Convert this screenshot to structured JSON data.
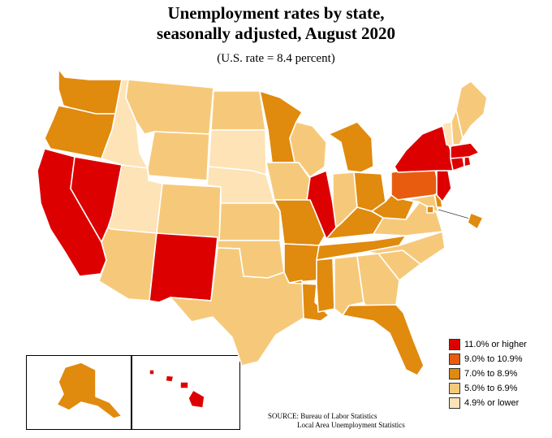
{
  "title_line1": "Unemployment rates by state,",
  "title_line2": "seasonally adjusted, August 2020",
  "subtitle": "(U.S. rate = 8.4 percent)",
  "colors": {
    "c11": "#dd0000",
    "c9": "#e85c10",
    "c7": "#e08a0e",
    "c5": "#f6c97a",
    "c4": "#fde3b6"
  },
  "legend": [
    {
      "label": "11.0% or higher",
      "class": "c11"
    },
    {
      "label": "9.0% to 10.9%",
      "class": "c9"
    },
    {
      "label": "7.0% to 8.9%",
      "class": "c7"
    },
    {
      "label": "5.0% to 6.9%",
      "class": "c5"
    },
    {
      "label": "4.9% or lower",
      "class": "c4"
    }
  ],
  "states": {
    "WA": "c7",
    "OR": "c7",
    "CA": "c11",
    "NV": "c11",
    "ID": "c4",
    "MT": "c5",
    "WY": "c5",
    "UT": "c4",
    "AZ": "c5",
    "NM": "c11",
    "CO": "c5",
    "ND": "c5",
    "SD": "c4",
    "NE": "c4",
    "KS": "c5",
    "OK": "c5",
    "TX": "c5",
    "MN": "c7",
    "IA": "c5",
    "MO": "c7",
    "AR": "c7",
    "LA": "c7",
    "WI": "c5",
    "IL": "c11",
    "MI": "c7",
    "IN": "c5",
    "OH": "c7",
    "KY": "c7",
    "TN": "c7",
    "MS": "c7",
    "AL": "c5",
    "GA": "c5",
    "FL": "c7",
    "SC": "c5",
    "NC": "c5",
    "VA": "c5",
    "WV": "c7",
    "PA": "c9",
    "NY": "c11",
    "ME": "c5",
    "NH": "c5",
    "VT": "c4",
    "MA": "c11",
    "RI": "c11",
    "CT": "c11",
    "NJ": "c11",
    "DE": "c7",
    "MD": "c5",
    "DC": "c7",
    "AK": "c7",
    "HI": "c11"
  },
  "source_line1": "SOURCE:   Bureau of Labor Statistics",
  "source_line2": "Local Area Unemployment Statistics"
}
